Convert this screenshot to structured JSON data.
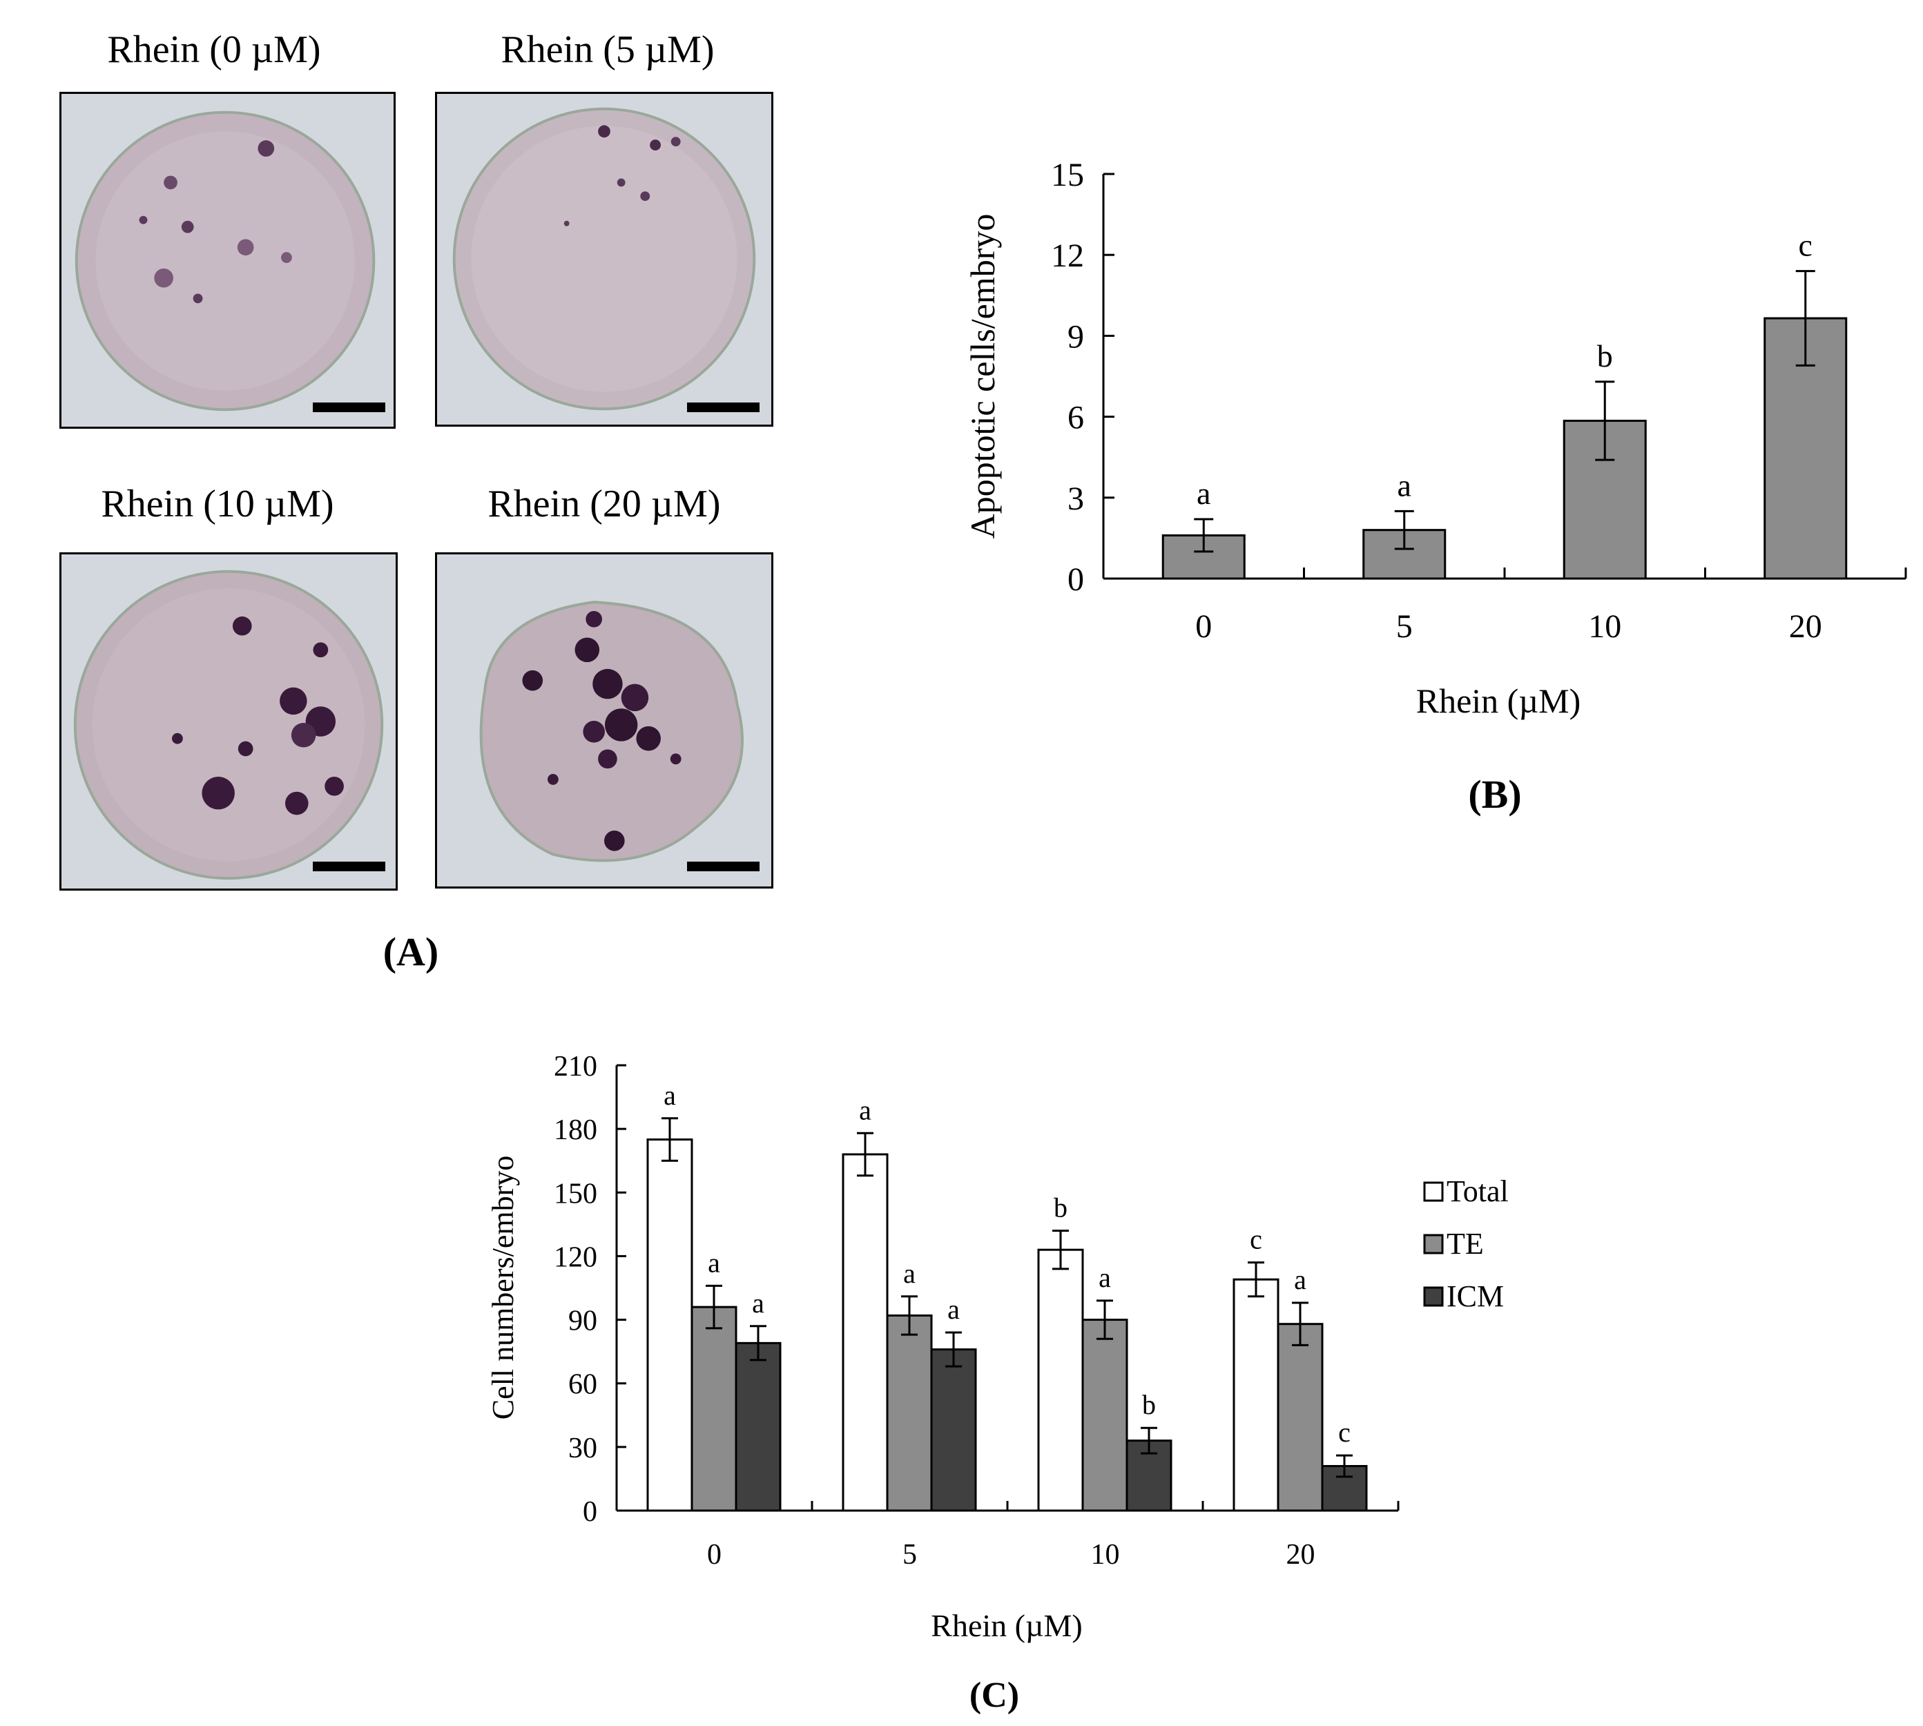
{
  "panelA": {
    "label": "(A)",
    "images": [
      {
        "title": "Rhein (0 µM)"
      },
      {
        "title": "Rhein (5 µM)"
      },
      {
        "title": "Rhein (10 µM)"
      },
      {
        "title": "Rhein (20 µM)"
      }
    ]
  },
  "chart_data": [
    {
      "id": "B",
      "panel_label": "(B)",
      "type": "bar",
      "categories": [
        "0",
        "5",
        "10",
        "20"
      ],
      "values": [
        1.6,
        1.8,
        5.85,
        9.65
      ],
      "errors": [
        0.6,
        0.7,
        1.45,
        1.75
      ],
      "significance": [
        "a",
        "a",
        "b",
        "c"
      ],
      "xlabel": "Rhein (µM)",
      "ylabel": "Apoptotic cells/embryo",
      "ylim": [
        0,
        15
      ],
      "yticks": [
        0,
        3,
        6,
        9,
        12,
        15
      ],
      "color": "#8c8c8c"
    },
    {
      "id": "C",
      "panel_label": "(C)",
      "type": "bar",
      "categories": [
        "0",
        "5",
        "10",
        "20"
      ],
      "series": [
        {
          "name": "Total",
          "color": "#ffffff",
          "values": [
            175,
            168,
            123,
            109
          ],
          "errors": [
            10,
            10,
            9,
            8
          ],
          "significance": [
            "a",
            "a",
            "b",
            "c"
          ]
        },
        {
          "name": "TE",
          "color": "#8c8c8c",
          "values": [
            96,
            92,
            90,
            88
          ],
          "errors": [
            10,
            9,
            9,
            10
          ],
          "significance": [
            "a",
            "a",
            "a",
            "a"
          ]
        },
        {
          "name": "ICM",
          "color": "#404040",
          "values": [
            79,
            76,
            33,
            21
          ],
          "errors": [
            8,
            8,
            6,
            5
          ],
          "significance": [
            "a",
            "a",
            "b",
            "c"
          ]
        }
      ],
      "xlabel": "Rhein (µM)",
      "ylabel": "Cell numbers/embryo",
      "ylim": [
        0,
        210
      ],
      "yticks": [
        0,
        30,
        60,
        90,
        120,
        150,
        180,
        210
      ],
      "legend": "right"
    }
  ]
}
